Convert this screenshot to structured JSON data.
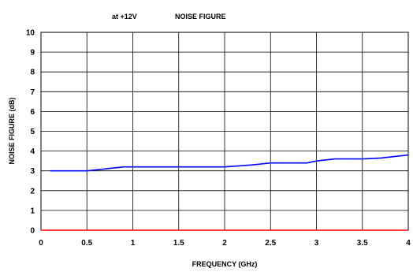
{
  "chart_data": {
    "type": "line",
    "title_left": "at +12V",
    "title": "NOISE FIGURE",
    "xlabel": "FREQUENCY (GHz)",
    "ylabel": "NOISE FIGURE (dB)",
    "xlim": [
      0,
      4
    ],
    "ylim": [
      0,
      10
    ],
    "x_ticks": [
      0,
      0.5,
      1,
      1.5,
      2,
      2.5,
      3,
      3.5,
      4
    ],
    "x_tick_labels": [
      "0",
      "0.5",
      "1",
      "1.5",
      "2",
      "2.5",
      "3",
      "3.5",
      "4"
    ],
    "y_ticks": [
      0,
      1,
      2,
      3,
      4,
      5,
      6,
      7,
      8,
      9,
      10
    ],
    "y_tick_labels": [
      "0",
      "1",
      "2",
      "3",
      "4",
      "5",
      "6",
      "7",
      "8",
      "9",
      "10"
    ],
    "grid": true,
    "series": [
      {
        "color": "#0000ff",
        "x": [
          0.1,
          0.5,
          0.9,
          1.0,
          2.0,
          2.3,
          2.5,
          2.9,
          3.0,
          3.2,
          3.5,
          3.7,
          4.0
        ],
        "y": [
          3.0,
          3.0,
          3.2,
          3.2,
          3.2,
          3.3,
          3.4,
          3.4,
          3.5,
          3.6,
          3.6,
          3.65,
          3.8
        ]
      },
      {
        "color": "#ff0000",
        "x": [
          0,
          4
        ],
        "y": [
          0,
          0
        ]
      }
    ]
  }
}
